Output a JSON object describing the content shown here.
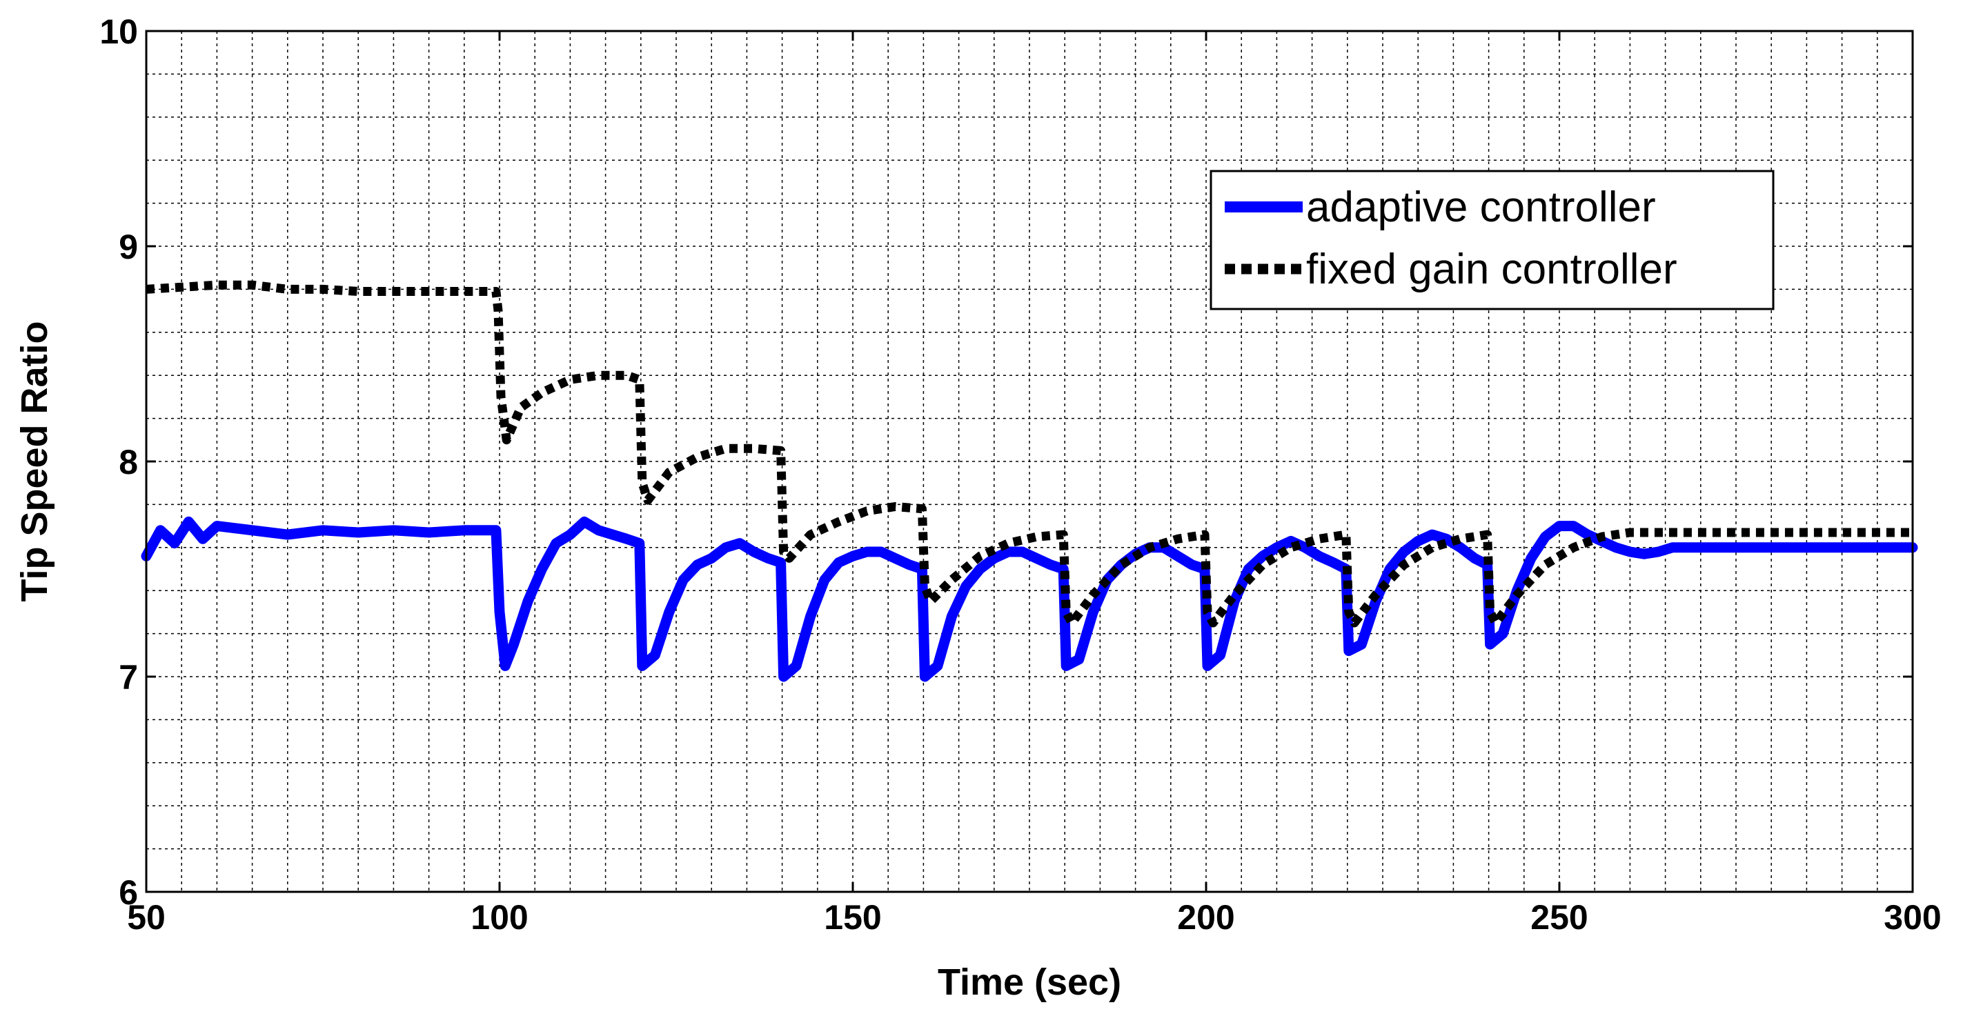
{
  "chart_data": {
    "type": "line",
    "xlabel": "Time (sec)",
    "ylabel": "Tip Speed Ratio",
    "xlim": [
      50,
      300
    ],
    "ylim": [
      6,
      10
    ],
    "xticks": [
      50,
      100,
      150,
      200,
      250,
      300
    ],
    "yticks": [
      6,
      7,
      8,
      9,
      10
    ],
    "x_minor_step": 5,
    "y_minor_step": 0.2,
    "grid": true,
    "legend_position": "top-right",
    "series": [
      {
        "name": "adaptive controller",
        "style": "solid",
        "color": "#0000ff",
        "points": [
          [
            50,
            7.56
          ],
          [
            52,
            7.68
          ],
          [
            54,
            7.62
          ],
          [
            56,
            7.72
          ],
          [
            58,
            7.64
          ],
          [
            60,
            7.7
          ],
          [
            65,
            7.68
          ],
          [
            70,
            7.66
          ],
          [
            75,
            7.68
          ],
          [
            80,
            7.67
          ],
          [
            85,
            7.68
          ],
          [
            90,
            7.67
          ],
          [
            95,
            7.68
          ],
          [
            99.5,
            7.68
          ],
          [
            100,
            7.3
          ],
          [
            100.8,
            7.05
          ],
          [
            102,
            7.15
          ],
          [
            104,
            7.35
          ],
          [
            106,
            7.5
          ],
          [
            108,
            7.62
          ],
          [
            110,
            7.66
          ],
          [
            112,
            7.72
          ],
          [
            114,
            7.68
          ],
          [
            116,
            7.66
          ],
          [
            118,
            7.64
          ],
          [
            119.8,
            7.62
          ],
          [
            120.2,
            7.05
          ],
          [
            122,
            7.1
          ],
          [
            124,
            7.3
          ],
          [
            126,
            7.45
          ],
          [
            128,
            7.52
          ],
          [
            130,
            7.55
          ],
          [
            132,
            7.6
          ],
          [
            134,
            7.62
          ],
          [
            136,
            7.58
          ],
          [
            138,
            7.55
          ],
          [
            139.8,
            7.53
          ],
          [
            140.2,
            7.0
          ],
          [
            142,
            7.05
          ],
          [
            144,
            7.28
          ],
          [
            146,
            7.45
          ],
          [
            148,
            7.53
          ],
          [
            150,
            7.56
          ],
          [
            152,
            7.58
          ],
          [
            154,
            7.58
          ],
          [
            156,
            7.55
          ],
          [
            158,
            7.52
          ],
          [
            159.8,
            7.5
          ],
          [
            160.2,
            7.0
          ],
          [
            162,
            7.05
          ],
          [
            164,
            7.28
          ],
          [
            166,
            7.42
          ],
          [
            168,
            7.5
          ],
          [
            170,
            7.55
          ],
          [
            172,
            7.58
          ],
          [
            174,
            7.58
          ],
          [
            176,
            7.55
          ],
          [
            178,
            7.52
          ],
          [
            179.8,
            7.5
          ],
          [
            180.2,
            7.05
          ],
          [
            182,
            7.08
          ],
          [
            184,
            7.3
          ],
          [
            186,
            7.45
          ],
          [
            188,
            7.52
          ],
          [
            190,
            7.57
          ],
          [
            192,
            7.6
          ],
          [
            194,
            7.6
          ],
          [
            196,
            7.56
          ],
          [
            198,
            7.52
          ],
          [
            199.8,
            7.5
          ],
          [
            200.2,
            7.05
          ],
          [
            202,
            7.1
          ],
          [
            204,
            7.35
          ],
          [
            206,
            7.5
          ],
          [
            208,
            7.56
          ],
          [
            210,
            7.6
          ],
          [
            212,
            7.63
          ],
          [
            214,
            7.6
          ],
          [
            216,
            7.56
          ],
          [
            218,
            7.53
          ],
          [
            219.8,
            7.5
          ],
          [
            220.2,
            7.12
          ],
          [
            222,
            7.15
          ],
          [
            224,
            7.35
          ],
          [
            226,
            7.5
          ],
          [
            228,
            7.58
          ],
          [
            230,
            7.63
          ],
          [
            232,
            7.66
          ],
          [
            234,
            7.64
          ],
          [
            236,
            7.6
          ],
          [
            238,
            7.55
          ],
          [
            239.8,
            7.52
          ],
          [
            240.2,
            7.15
          ],
          [
            242,
            7.2
          ],
          [
            244,
            7.4
          ],
          [
            246,
            7.55
          ],
          [
            248,
            7.65
          ],
          [
            250,
            7.7
          ],
          [
            252,
            7.7
          ],
          [
            254,
            7.66
          ],
          [
            256,
            7.63
          ],
          [
            258,
            7.6
          ],
          [
            260,
            7.58
          ],
          [
            262,
            7.57
          ],
          [
            264,
            7.58
          ],
          [
            266,
            7.6
          ],
          [
            270,
            7.6
          ],
          [
            275,
            7.6
          ],
          [
            280,
            7.6
          ],
          [
            285,
            7.6
          ],
          [
            290,
            7.6
          ],
          [
            295,
            7.6
          ],
          [
            300,
            7.6
          ]
        ]
      },
      {
        "name": "fixed gain controller",
        "style": "dotted",
        "color": "#000000",
        "points": [
          [
            50,
            8.8
          ],
          [
            55,
            8.81
          ],
          [
            60,
            8.82
          ],
          [
            65,
            8.82
          ],
          [
            70,
            8.8
          ],
          [
            75,
            8.8
          ],
          [
            80,
            8.79
          ],
          [
            85,
            8.79
          ],
          [
            90,
            8.79
          ],
          [
            95,
            8.79
          ],
          [
            99.5,
            8.79
          ],
          [
            99.8,
            8.7
          ],
          [
            100.2,
            8.3
          ],
          [
            101,
            8.1
          ],
          [
            103,
            8.25
          ],
          [
            106,
            8.32
          ],
          [
            110,
            8.38
          ],
          [
            114,
            8.4
          ],
          [
            118,
            8.4
          ],
          [
            119.8,
            8.38
          ],
          [
            120.2,
            7.9
          ],
          [
            121,
            7.82
          ],
          [
            124,
            7.95
          ],
          [
            128,
            8.02
          ],
          [
            132,
            8.06
          ],
          [
            136,
            8.06
          ],
          [
            139.8,
            8.05
          ],
          [
            140.2,
            7.58
          ],
          [
            141,
            7.55
          ],
          [
            144,
            7.66
          ],
          [
            148,
            7.72
          ],
          [
            152,
            7.77
          ],
          [
            156,
            7.79
          ],
          [
            159.8,
            7.78
          ],
          [
            160.2,
            7.42
          ],
          [
            161,
            7.35
          ],
          [
            164,
            7.45
          ],
          [
            168,
            7.56
          ],
          [
            172,
            7.62
          ],
          [
            176,
            7.65
          ],
          [
            179.8,
            7.66
          ],
          [
            180.2,
            7.3
          ],
          [
            181,
            7.25
          ],
          [
            184,
            7.38
          ],
          [
            188,
            7.52
          ],
          [
            192,
            7.6
          ],
          [
            196,
            7.64
          ],
          [
            199.8,
            7.66
          ],
          [
            200.2,
            7.3
          ],
          [
            201,
            7.25
          ],
          [
            204,
            7.38
          ],
          [
            208,
            7.52
          ],
          [
            212,
            7.6
          ],
          [
            216,
            7.64
          ],
          [
            219.8,
            7.66
          ],
          [
            220.2,
            7.3
          ],
          [
            221,
            7.25
          ],
          [
            224,
            7.38
          ],
          [
            228,
            7.52
          ],
          [
            232,
            7.6
          ],
          [
            236,
            7.64
          ],
          [
            239.8,
            7.66
          ],
          [
            240.2,
            7.3
          ],
          [
            241,
            7.25
          ],
          [
            244,
            7.38
          ],
          [
            248,
            7.52
          ],
          [
            252,
            7.6
          ],
          [
            256,
            7.65
          ],
          [
            260,
            7.67
          ],
          [
            270,
            7.67
          ],
          [
            280,
            7.67
          ],
          [
            290,
            7.67
          ],
          [
            300,
            7.67
          ]
        ]
      }
    ]
  }
}
